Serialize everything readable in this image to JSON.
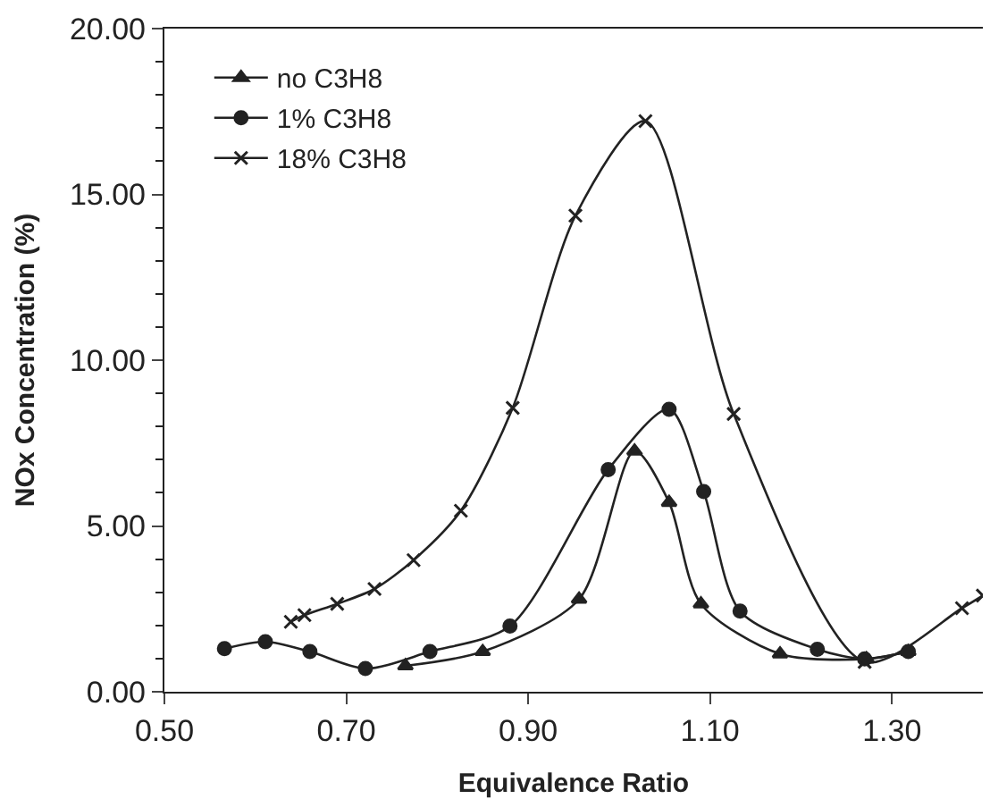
{
  "chart_data": {
    "type": "line",
    "xlabel": "Equivalence Ratio",
    "ylabel": "NOx Concentration (%)",
    "xlim": [
      0.5,
      1.4
    ],
    "xticks": [
      {
        "value": 0.5,
        "label": "0.50"
      },
      {
        "value": 0.7,
        "label": "0.70"
      },
      {
        "value": 0.9,
        "label": "0.90"
      },
      {
        "value": 1.1,
        "label": "1.10"
      },
      {
        "value": 1.3,
        "label": "1.30"
      }
    ],
    "ylim": [
      0,
      20
    ],
    "yticks": [
      {
        "value": 0,
        "label": "0.00"
      },
      {
        "value": 5,
        "label": "5.00"
      },
      {
        "value": 10,
        "label": "10.00"
      },
      {
        "value": 15,
        "label": "15.00"
      },
      {
        "value": 20,
        "label": "20.00"
      }
    ],
    "legend": "top left",
    "line_style": "solid",
    "series": [
      {
        "name": "no C3H8",
        "color": "#222222",
        "marker": "triangle",
        "x": [
          0.765,
          0.85,
          0.956,
          1.017,
          1.055,
          1.09,
          1.177,
          1.272,
          1.318
        ],
        "values": [
          0.78,
          1.21,
          2.79,
          7.26,
          5.71,
          2.65,
          1.14,
          0.99,
          1.21
        ]
      },
      {
        "name": "1% C3H8",
        "color": "#222222",
        "marker": "circle",
        "x": [
          0.566,
          0.611,
          0.66,
          0.721,
          0.792,
          0.88,
          0.988,
          1.055,
          1.093,
          1.133,
          1.218,
          1.27,
          1.318
        ],
        "values": [
          1.3,
          1.51,
          1.21,
          0.7,
          1.21,
          1.98,
          6.7,
          8.52,
          6.04,
          2.43,
          1.28,
          0.99,
          1.21
        ]
      },
      {
        "name": "18% C3H8",
        "color": "#222222",
        "marker": "cross",
        "x": [
          0.639,
          0.654,
          0.69,
          0.731,
          0.774,
          0.826,
          0.883,
          0.952,
          1.029,
          1.126,
          1.27,
          1.377,
          1.4
        ],
        "values": [
          2.11,
          2.31,
          2.65,
          3.1,
          3.97,
          5.46,
          8.56,
          14.36,
          17.21,
          8.38,
          0.9,
          2.52,
          2.9
        ]
      }
    ]
  }
}
